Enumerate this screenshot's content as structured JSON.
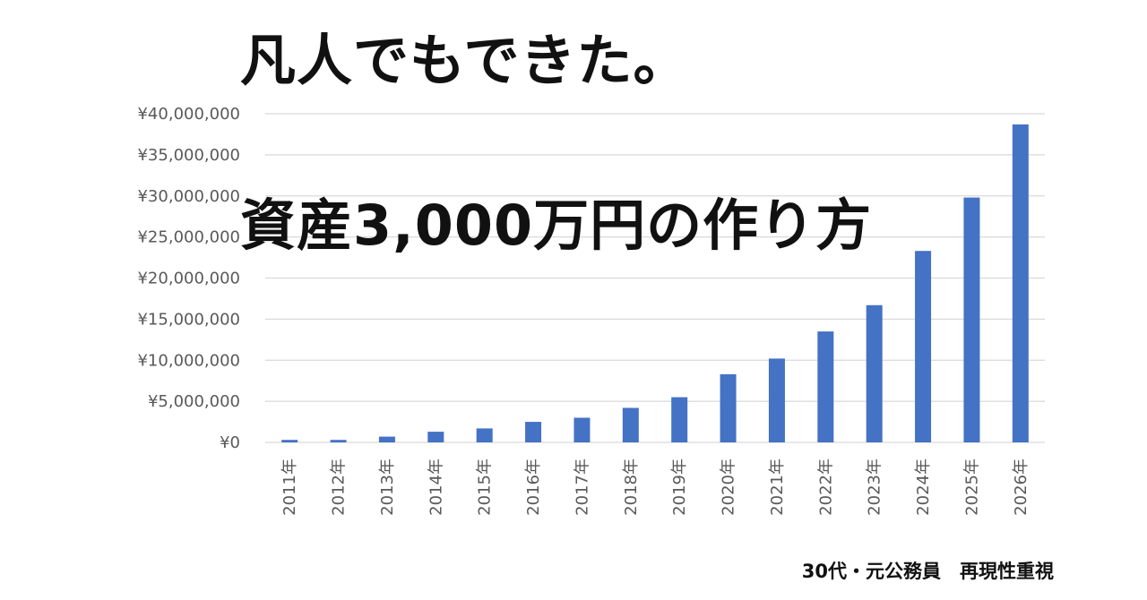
{
  "headline": {
    "top": "凡人でもできた。",
    "middle": "資産3,000万円の作り方"
  },
  "footer": {
    "caption": "30代・元公務員　再現性重視"
  },
  "colors": {
    "bar": "#4472C4",
    "grid": "#d9d9d9",
    "tick_text": "#595959",
    "headline": "#111111"
  },
  "chart_data": {
    "type": "bar",
    "categories": [
      "2011年",
      "2012年",
      "2013年",
      "2014年",
      "2015年",
      "2016年",
      "2017年",
      "2018年",
      "2019年",
      "2020年",
      "2021年",
      "2022年",
      "2023年",
      "2024年",
      "2025年",
      "2026年"
    ],
    "values": [
      300000,
      300000,
      700000,
      1300000,
      1700000,
      2500000,
      3000000,
      4200000,
      5500000,
      8300000,
      10200000,
      13500000,
      16700000,
      23300000,
      29800000,
      38700000
    ],
    "yticks": [
      0,
      5000000,
      10000000,
      15000000,
      20000000,
      25000000,
      30000000,
      35000000,
      40000000
    ],
    "ytick_labels": [
      "¥0",
      "¥5,000,000",
      "¥10,000,000",
      "¥15,000,000",
      "¥20,000,000",
      "¥25,000,000",
      "¥30,000,000",
      "¥35,000,000",
      "¥40,000,000"
    ],
    "ylim": [
      0,
      40000000
    ],
    "grid": true,
    "legend": "none",
    "title": "",
    "xlabel": "",
    "ylabel": ""
  }
}
